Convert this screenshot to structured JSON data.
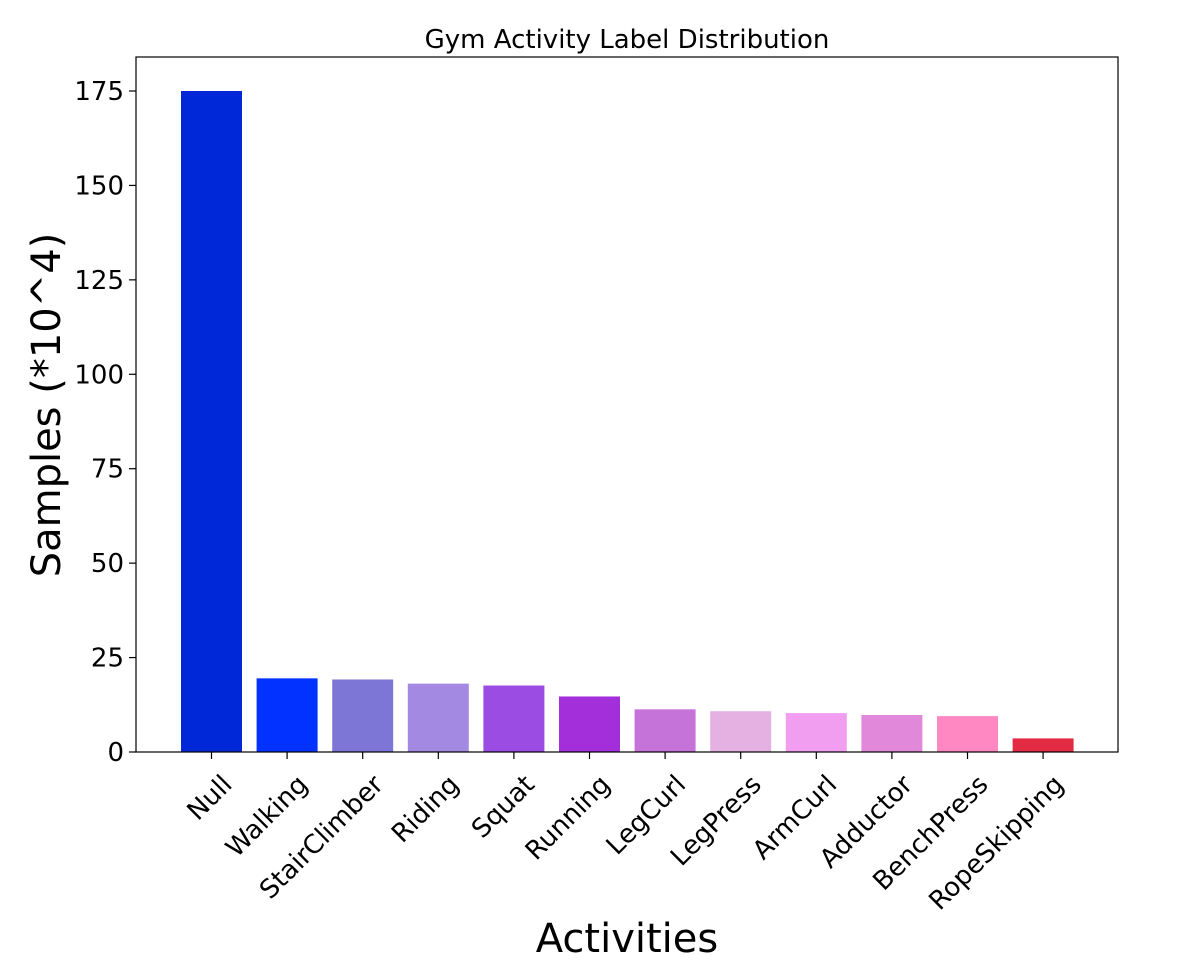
{
  "chart_data": {
    "type": "bar",
    "title": "Gym Activity Label Distribution",
    "xlabel": "Activities",
    "ylabel": "Samples (*10^4)",
    "ylim": [
      0,
      184
    ],
    "yticks": [
      0,
      25,
      50,
      75,
      100,
      125,
      150,
      175
    ],
    "grid": false,
    "categories": [
      "Null",
      "Walking",
      "StairClimber",
      "Riding",
      "Squat",
      "Running",
      "LegCurl",
      "LegPress",
      "ArmCurl",
      "Adductor",
      "BenchPress",
      "RopeSkipping"
    ],
    "values": [
      175,
      19.5,
      19.2,
      18.1,
      17.6,
      14.7,
      11.3,
      10.8,
      10.3,
      9.8,
      9.5,
      3.6
    ],
    "colors": [
      "#0028d8",
      "#0132ff",
      "#7e76d6",
      "#a389e2",
      "#9b4de3",
      "#a32fdb",
      "#c673d9",
      "#e4b1e2",
      "#f19df0",
      "#e188da",
      "#ff88c3",
      "#e32b44"
    ]
  }
}
